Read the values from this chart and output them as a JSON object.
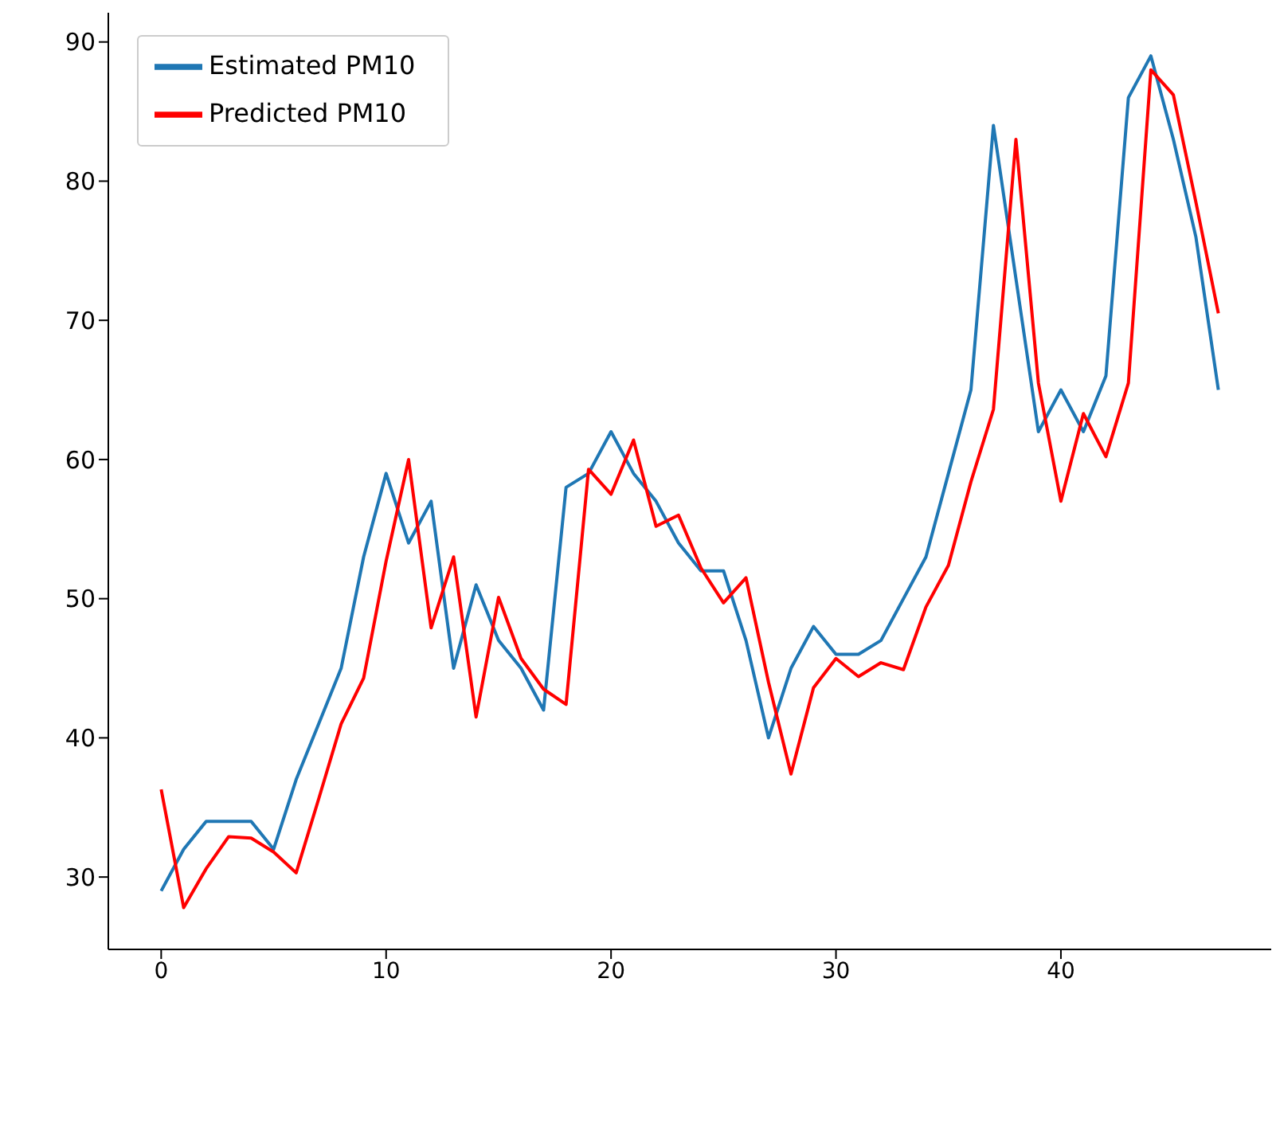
{
  "chart_data": {
    "type": "line",
    "x": [
      0,
      1,
      2,
      3,
      4,
      5,
      6,
      7,
      8,
      9,
      10,
      11,
      12,
      13,
      14,
      15,
      16,
      17,
      18,
      19,
      20,
      21,
      22,
      23,
      24,
      25,
      26,
      27,
      28,
      29,
      30,
      31,
      32,
      33,
      34,
      35,
      36,
      37,
      38,
      39,
      40,
      41,
      42,
      43,
      44,
      45,
      46,
      47
    ],
    "series": [
      {
        "name": "Estimated PM10",
        "color": "#1f77b4",
        "values": [
          29,
          32,
          34,
          34,
          34,
          32,
          37,
          41,
          45,
          53,
          59,
          54,
          57,
          45,
          51,
          47,
          45,
          42,
          58,
          59,
          62,
          59,
          57,
          54,
          52,
          52,
          47,
          40,
          45,
          48,
          46,
          46,
          47,
          50,
          53,
          59,
          65,
          84,
          73,
          62,
          65,
          62,
          66,
          86,
          89,
          83,
          76,
          65
        ]
      },
      {
        "name": "Predicted PM10",
        "color": "#ff0000",
        "values": [
          36.3,
          27.8,
          30.6,
          32.9,
          32.8,
          31.8,
          30.3,
          35.6,
          41,
          44.3,
          52.7,
          60,
          47.9,
          53,
          41.5,
          50.1,
          45.7,
          43.5,
          42.4,
          59.3,
          57.5,
          61.4,
          55.2,
          56,
          52.2,
          49.7,
          51.5,
          44,
          37.4,
          43.6,
          45.7,
          44.4,
          45.4,
          44.9,
          49.4,
          52.4,
          58.4,
          63.6,
          83,
          65.5,
          57,
          63.3,
          60.2,
          65.5,
          88,
          86.2,
          78.5,
          70.5
        ]
      }
    ],
    "xlim": [
      -2.35,
      49.35
    ],
    "xticks": [
      0,
      10,
      20,
      30,
      40
    ],
    "ylim": [
      24.8,
      92.1
    ],
    "yticks": [
      30,
      40,
      50,
      60,
      70,
      80,
      90
    ],
    "legend": "top left",
    "grid": false,
    "marker": "none",
    "line_style": "solid"
  }
}
